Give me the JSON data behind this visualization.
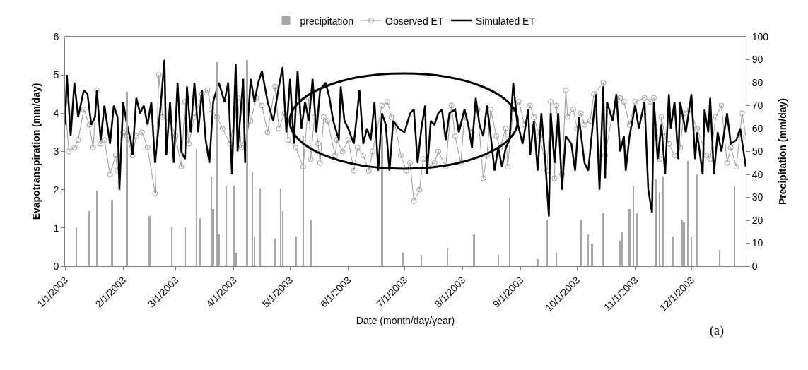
{
  "chart_data": {
    "type": "line",
    "xlabel": "Date (month/day/year)",
    "ylabel": "Evapotranspiration (mm/day)",
    "y2label": "Precipitation (mm/day)",
    "xlim": [
      "2003-01-01",
      "2003-12-30"
    ],
    "xticks": [
      {
        "value": "2003-01-01",
        "label": "1/1/2003"
      },
      {
        "value": "2003-02-01",
        "label": "2/1/2003"
      },
      {
        "value": "2003-03-01",
        "label": "3/1/2003"
      },
      {
        "value": "2003-04-01",
        "label": "4/1/2003"
      },
      {
        "value": "2003-05-01",
        "label": "5/1/2003"
      },
      {
        "value": "2003-06-01",
        "label": "6/1/2003"
      },
      {
        "value": "2003-07-01",
        "label": "7/1/2003"
      },
      {
        "value": "2003-08-01",
        "label": "8/1/2003"
      },
      {
        "value": "2003-09-01",
        "label": "9/1/2003"
      },
      {
        "value": "2003-10-01",
        "label": "10/1/2003"
      },
      {
        "value": "2003-11-01",
        "label": "11/1/2003"
      },
      {
        "value": "2003-12-01",
        "label": "12/1/2003"
      }
    ],
    "ylim": [
      0,
      6
    ],
    "yticks": [
      0,
      1,
      2,
      3,
      4,
      5,
      6
    ],
    "y2lim": [
      0,
      100
    ],
    "y2ticks": [
      0,
      10,
      20,
      30,
      40,
      50,
      60,
      70,
      80,
      90,
      100
    ],
    "legend": "top",
    "annotations": [
      "(a)"
    ],
    "series": [
      {
        "name": "precipitation",
        "type": "bar",
        "axis": "y2",
        "color": "#a6a6a6",
        "x": [
          "2003-01-07",
          "2003-01-14",
          "2003-01-18",
          "2003-01-26",
          "2003-02-03",
          "2003-02-15",
          "2003-02-27",
          "2003-03-06",
          "2003-03-12",
          "2003-03-14",
          "2003-03-20",
          "2003-03-21",
          "2003-03-23",
          "2003-03-24",
          "2003-03-28",
          "2003-04-01",
          "2003-04-02",
          "2003-04-08",
          "2003-04-11",
          "2003-04-12",
          "2003-04-15",
          "2003-04-23",
          "2003-04-26",
          "2003-04-27",
          "2003-05-04",
          "2003-05-08",
          "2003-05-12",
          "2003-06-19",
          "2003-06-30",
          "2003-07-10",
          "2003-07-24",
          "2003-08-07",
          "2003-08-20",
          "2003-08-26",
          "2003-09-10",
          "2003-09-15",
          "2003-09-20",
          "2003-10-03",
          "2003-10-07",
          "2003-10-09",
          "2003-10-15",
          "2003-10-24",
          "2003-10-25",
          "2003-10-29",
          "2003-10-31",
          "2003-11-02",
          "2003-11-12",
          "2003-11-14",
          "2003-11-16",
          "2003-11-21",
          "2003-11-26",
          "2003-11-27",
          "2003-11-29",
          "2003-12-01",
          "2003-12-04",
          "2003-12-16",
          "2003-12-24"
        ],
        "values": [
          17,
          24,
          33,
          29,
          76,
          22,
          17,
          17,
          51,
          21,
          39,
          25,
          89,
          14,
          35,
          35,
          6,
          90,
          41,
          13,
          34,
          12,
          34,
          24,
          13,
          57,
          20,
          57,
          6,
          5,
          8,
          14,
          5,
          30,
          3,
          20,
          6,
          20,
          14,
          10,
          23,
          11,
          15,
          25,
          35,
          23,
          38,
          32,
          39,
          13,
          20,
          19,
          46,
          13,
          40,
          7,
          35
        ]
      },
      {
        "name": "Observed ET",
        "color": "#999999",
        "marker": "circle",
        "x": [
          "2003-01-01",
          "2003-01-03",
          "2003-01-06",
          "2003-01-08",
          "2003-01-11",
          "2003-01-14",
          "2003-01-16",
          "2003-01-18",
          "2003-01-20",
          "2003-01-22",
          "2003-01-25",
          "2003-01-28",
          "2003-01-29",
          "2003-02-01",
          "2003-02-03",
          "2003-02-06",
          "2003-02-08",
          "2003-02-11",
          "2003-02-14",
          "2003-02-18",
          "2003-02-20",
          "2003-02-22",
          "2003-02-26",
          "2003-03-01",
          "2003-03-04",
          "2003-03-06",
          "2003-03-08",
          "2003-03-11",
          "2003-03-15",
          "2003-03-18",
          "2003-03-20",
          "2003-03-23",
          "2003-03-26",
          "2003-03-30",
          "2003-04-03",
          "2003-04-05",
          "2003-04-10",
          "2003-04-13",
          "2003-04-16",
          "2003-04-19",
          "2003-04-23",
          "2003-04-25",
          "2003-04-28",
          "2003-04-30",
          "2003-05-04",
          "2003-05-08",
          "2003-05-11",
          "2003-05-12",
          "2003-05-14",
          "2003-05-16",
          "2003-05-17",
          "2003-05-19",
          "2003-05-21",
          "2003-05-25",
          "2003-05-26",
          "2003-05-29",
          "2003-06-01",
          "2003-06-04",
          "2003-06-06",
          "2003-06-09",
          "2003-06-12",
          "2003-06-14",
          "2003-06-19",
          "2003-06-22",
          "2003-06-24",
          "2003-06-26",
          "2003-06-29",
          "2003-07-02",
          "2003-07-04",
          "2003-07-06",
          "2003-07-09",
          "2003-07-11",
          "2003-07-14",
          "2003-07-17",
          "2003-07-19",
          "2003-07-23",
          "2003-07-26",
          "2003-07-28",
          "2003-07-31",
          "2003-08-02",
          "2003-08-06",
          "2003-08-09",
          "2003-08-12",
          "2003-08-14",
          "2003-08-16",
          "2003-08-19",
          "2003-08-21",
          "2003-08-24",
          "2003-08-25",
          "2003-08-28",
          "2003-08-31",
          "2003-09-03",
          "2003-09-06",
          "2003-09-08",
          "2003-09-11",
          "2003-09-15",
          "2003-09-17",
          "2003-09-19",
          "2003-09-20",
          "2003-09-23",
          "2003-09-25",
          "2003-09-26",
          "2003-09-29",
          "2003-10-01",
          "2003-10-03",
          "2003-10-05",
          "2003-10-08",
          "2003-10-10",
          "2003-10-15",
          "2003-10-16",
          "2003-10-20",
          "2003-10-24",
          "2003-10-26",
          "2003-10-29",
          "2003-11-01",
          "2003-11-06",
          "2003-11-09",
          "2003-11-11",
          "2003-11-14",
          "2003-11-15",
          "2003-11-17",
          "2003-11-19",
          "2003-11-22",
          "2003-11-25",
          "2003-11-27",
          "2003-11-30",
          "2003-12-04",
          "2003-12-09",
          "2003-12-11",
          "2003-12-14",
          "2003-12-17",
          "2003-12-20",
          "2003-12-22",
          "2003-12-25",
          "2003-12-28",
          "2003-12-30"
        ],
        "values": [
          4.3,
          3.0,
          3.1,
          3.3,
          4.1,
          3.7,
          3.1,
          4.6,
          3.2,
          3.3,
          2.4,
          2.9,
          2.5,
          3.5,
          3.4,
          2.9,
          3.4,
          3.5,
          3.1,
          1.9,
          5.0,
          3.9,
          3.8,
          3.4,
          2.6,
          4.3,
          3.2,
          3.9,
          4.5,
          4.6,
          4.1,
          3.9,
          3.6,
          3.2,
          4.4,
          3.1,
          3.8,
          4.4,
          4.2,
          3.5,
          4.7,
          3.6,
          4.0,
          3.3,
          3.1,
          2.6,
          4.4,
          2.8,
          3.9,
          3.2,
          2.7,
          3.9,
          3.8,
          2.9,
          3.3,
          3.0,
          3.3,
          2.5,
          3.1,
          2.9,
          2.5,
          3.0,
          4.2,
          4.3,
          3.9,
          3.7,
          2.9,
          2.5,
          2.7,
          1.7,
          2.0,
          2.8,
          2.6,
          2.7,
          3.0,
          2.6,
          4.2,
          3.4,
          2.7,
          3.9,
          3.5,
          4.1,
          2.3,
          2.9,
          4.1,
          3.4,
          3.1,
          3.6,
          2.6,
          4.1,
          4.3,
          3.7,
          4.2,
          3.9,
          3.4,
          2.5,
          4.3,
          2.3,
          4.2,
          2.4,
          4.6,
          3.9,
          4.1,
          3.6,
          4.0,
          3.7,
          3.8,
          4.5,
          4.8,
          2.9,
          4.0,
          4.4,
          4.3,
          3.7,
          4.3,
          4.4,
          4.3,
          4.4,
          2.8,
          3.9,
          3.4,
          3.2,
          2.9,
          3.1,
          4.0,
          4.1,
          3.6,
          2.9,
          2.8,
          3.9,
          4.2,
          2.7,
          3.1,
          2.6,
          4.0,
          3.4
        ]
      },
      {
        "name": "Simulated ET",
        "color": "#000000",
        "marker": "none",
        "x": [
          "2003-01-01",
          "2003-01-02",
          "2003-01-04",
          "2003-01-06",
          "2003-01-08",
          "2003-01-11",
          "2003-01-13",
          "2003-01-15",
          "2003-01-17",
          "2003-01-18",
          "2003-01-20",
          "2003-01-22",
          "2003-01-25",
          "2003-01-27",
          "2003-01-29",
          "2003-01-30",
          "2003-02-01",
          "2003-02-03",
          "2003-02-05",
          "2003-02-06",
          "2003-02-08",
          "2003-02-10",
          "2003-02-12",
          "2003-02-14",
          "2003-02-16",
          "2003-02-18",
          "2003-02-21",
          "2003-02-23",
          "2003-02-24",
          "2003-02-26",
          "2003-02-28",
          "2003-03-02",
          "2003-03-04",
          "2003-03-06",
          "2003-03-07",
          "2003-03-09",
          "2003-03-11",
          "2003-03-13",
          "2003-03-15",
          "2003-03-17",
          "2003-03-19",
          "2003-03-21",
          "2003-03-24",
          "2003-03-27",
          "2003-03-29",
          "2003-03-31",
          "2003-04-02",
          "2003-04-03",
          "2003-04-06",
          "2003-04-07",
          "2003-04-10",
          "2003-04-12",
          "2003-04-14",
          "2003-04-16",
          "2003-04-19",
          "2003-04-22",
          "2003-04-25",
          "2003-04-27",
          "2003-04-29",
          "2003-05-01",
          "2003-05-03",
          "2003-05-05",
          "2003-05-07",
          "2003-05-09",
          "2003-05-11",
          "2003-05-13",
          "2003-05-15",
          "2003-05-17",
          "2003-05-20",
          "2003-05-22",
          "2003-05-24",
          "2003-05-27",
          "2003-05-28",
          "2003-05-30",
          "2003-06-01",
          "2003-06-04",
          "2003-06-07",
          "2003-06-09",
          "2003-06-11",
          "2003-06-13",
          "2003-06-15",
          "2003-06-17",
          "2003-06-19",
          "2003-06-21",
          "2003-06-23",
          "2003-06-25",
          "2003-06-28",
          "2003-07-01",
          "2003-07-04",
          "2003-07-06",
          "2003-07-08",
          "2003-07-10",
          "2003-07-12",
          "2003-07-13",
          "2003-07-15",
          "2003-07-17",
          "2003-07-19",
          "2003-07-21",
          "2003-07-23",
          "2003-07-25",
          "2003-07-28",
          "2003-07-30",
          "2003-08-02",
          "2003-08-04",
          "2003-08-06",
          "2003-08-08",
          "2003-08-10",
          "2003-08-12",
          "2003-08-14",
          "2003-08-16",
          "2003-08-18",
          "2003-08-20",
          "2003-08-22",
          "2003-08-24",
          "2003-08-26",
          "2003-08-28",
          "2003-08-30",
          "2003-09-02",
          "2003-09-05",
          "2003-09-06",
          "2003-09-08",
          "2003-09-10",
          "2003-09-12",
          "2003-09-14",
          "2003-09-16",
          "2003-09-17",
          "2003-09-19",
          "2003-09-21",
          "2003-09-23",
          "2003-09-25",
          "2003-09-28",
          "2003-09-30",
          "2003-10-02",
          "2003-10-05",
          "2003-10-07",
          "2003-10-11",
          "2003-10-13",
          "2003-10-15",
          "2003-10-16",
          "2003-10-17",
          "2003-10-20",
          "2003-10-22",
          "2003-10-24",
          "2003-10-26",
          "2003-10-27",
          "2003-10-29",
          "2003-11-01",
          "2003-11-03",
          "2003-11-06",
          "2003-11-08",
          "2003-11-10",
          "2003-11-11",
          "2003-11-13",
          "2003-11-15",
          "2003-11-17",
          "2003-11-19",
          "2003-11-20",
          "2003-11-22",
          "2003-11-24",
          "2003-11-25",
          "2003-11-28",
          "2003-12-01",
          "2003-12-03",
          "2003-12-04",
          "2003-12-07",
          "2003-12-08",
          "2003-12-10",
          "2003-12-11",
          "2003-12-13",
          "2003-12-15",
          "2003-12-17",
          "2003-12-20",
          "2003-12-22",
          "2003-12-25",
          "2003-12-27",
          "2003-12-30"
        ],
        "values": [
          3.7,
          5.0,
          3.4,
          4.8,
          3.9,
          4.6,
          4.5,
          3.7,
          3.9,
          4.6,
          3.3,
          4.2,
          3.2,
          4.2,
          3.9,
          2.0,
          4.3,
          3.7,
          3.3,
          2.9,
          4.4,
          4.0,
          4.2,
          3.7,
          4.3,
          2.7,
          4.2,
          5.4,
          2.9,
          4.3,
          2.7,
          4.8,
          3.0,
          2.8,
          4.7,
          3.5,
          4.8,
          3.5,
          4.6,
          3.3,
          2.7,
          4.3,
          4.8,
          4.3,
          4.8,
          2.4,
          5.3,
          3.0,
          4.9,
          2.7,
          4.9,
          4.3,
          4.8,
          5.1,
          4.3,
          3.8,
          4.7,
          5.2,
          3.5,
          4.9,
          3.2,
          5.1,
          3.6,
          4.3,
          3.8,
          4.9,
          3.5,
          4.6,
          4.8,
          4.4,
          3.8,
          3.3,
          4.7,
          3.8,
          3.6,
          3.2,
          4.6,
          3.2,
          3.6,
          3.3,
          4.3,
          2.5,
          4.0,
          3.7,
          2.5,
          3.8,
          3.6,
          3.5,
          4.0,
          4.1,
          2.7,
          3.6,
          4.2,
          2.4,
          3.8,
          3.7,
          4.0,
          4.1,
          3.3,
          4.0,
          4.1,
          3.5,
          4.1,
          3.7,
          3.1,
          4.4,
          3.7,
          3.4,
          4.2,
          3.4,
          2.5,
          3.1,
          2.6,
          3.1,
          3.3,
          4.8,
          3.8,
          3.2,
          4.1,
          2.9,
          3.8,
          2.5,
          4.0,
          2.8,
          1.3,
          4.0,
          2.7,
          4.0,
          2.0,
          3.4,
          3.2,
          2.5,
          3.9,
          2.7,
          2.5,
          4.5,
          2.0,
          4.7,
          2.3,
          4.3,
          3.8,
          4.5,
          3.0,
          3.4,
          2.5,
          3.4,
          4.2,
          3.6,
          4.3,
          2.0,
          1.4,
          4.3,
          2.8,
          3.7,
          2.4,
          4.5,
          3.6,
          4.3,
          2.8,
          4.3,
          3.5,
          4.5,
          2.8,
          3.5,
          2.4,
          4.1,
          3.5,
          4.4,
          2.4,
          3.5,
          3.0,
          4.0,
          3.2,
          3.3,
          3.6,
          2.6
        ]
      }
    ]
  }
}
